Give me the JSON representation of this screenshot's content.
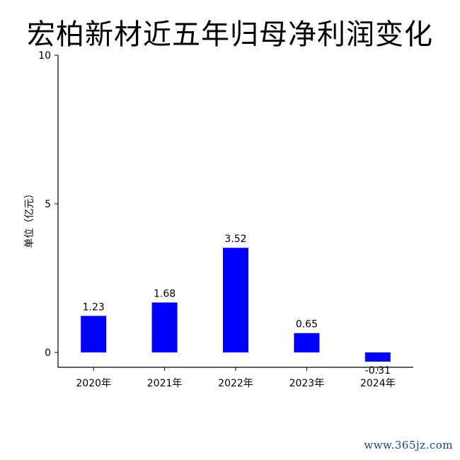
{
  "chart_data": {
    "type": "bar",
    "title": "宏柏新材近五年归母净利润变化",
    "ylabel": "单位（亿元）",
    "xlabel": "",
    "categories": [
      "2020年",
      "2021年",
      "2022年",
      "2023年",
      "2024年"
    ],
    "values": [
      1.23,
      1.68,
      3.52,
      0.65,
      -0.31
    ],
    "value_labels": [
      "1.23",
      "1.68",
      "3.52",
      "0.65",
      "-0.31"
    ],
    "ylim": [
      -0.5,
      10
    ],
    "yticks": [
      0,
      5,
      10
    ],
    "ytick_labels": [
      "0",
      "5",
      "10"
    ],
    "bar_color": "#0000ff",
    "grid": false,
    "legend": "none"
  },
  "watermark": "www.365jz.com"
}
